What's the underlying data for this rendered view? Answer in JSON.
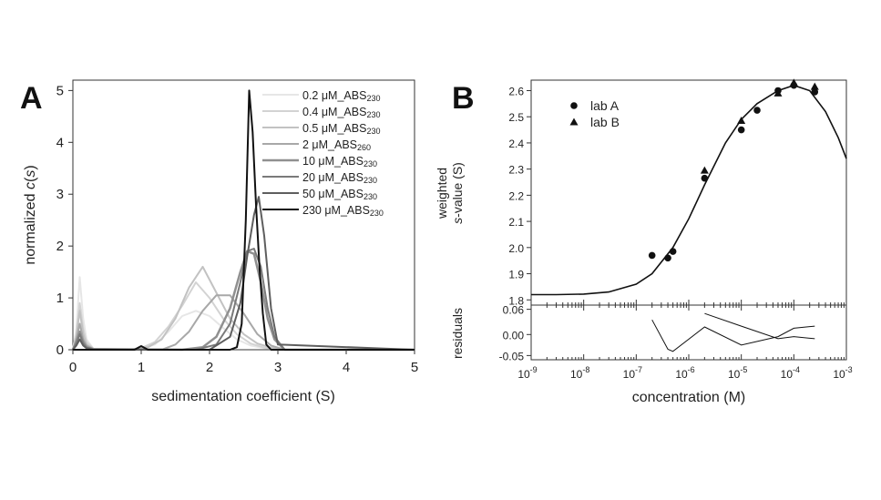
{
  "chart_data": [
    {
      "type": "line",
      "panel_label": "A",
      "xlabel": "sedimentation coefficient (S)",
      "ylabel_prefix": "normalized ",
      "ylabel_italic": "c",
      "ylabel_open": "(",
      "ylabel_var": "s",
      "ylabel_close": ")",
      "xlim": [
        0,
        5
      ],
      "ylim": [
        0,
        5.2
      ],
      "xticks": [
        0,
        1,
        2,
        3,
        4,
        5
      ],
      "yticks": [
        0,
        1,
        2,
        3,
        4,
        5
      ],
      "grid": false,
      "legend_position": "top-right",
      "series": [
        {
          "name": "0.2  μM_ABS",
          "sub": "230",
          "color": "#e6e6e6",
          "width": 2,
          "x": [
            0,
            0.05,
            0.1,
            0.15,
            0.2,
            0.3,
            0.5,
            0.8,
            1.0,
            1.2,
            1.4,
            1.6,
            1.8,
            2.0,
            2.2,
            2.4,
            2.6,
            2.8,
            3.0,
            3.2,
            5.0
          ],
          "y": [
            0,
            0.4,
            1.4,
            0.6,
            0.2,
            0.02,
            0,
            0,
            0.02,
            0.1,
            0.35,
            0.65,
            0.75,
            0.65,
            0.42,
            0.2,
            0.08,
            0.03,
            0.01,
            0,
            0
          ]
        },
        {
          "name": "0.4  μM_ABS",
          "sub": "230",
          "color": "#d3d3d3",
          "width": 2,
          "x": [
            0,
            0.05,
            0.1,
            0.15,
            0.2,
            0.3,
            0.8,
            1.0,
            1.2,
            1.4,
            1.6,
            1.8,
            2.0,
            2.2,
            2.4,
            2.6,
            2.8,
            3.0,
            5.0
          ],
          "y": [
            0,
            0.3,
            0.9,
            0.4,
            0.15,
            0.02,
            0,
            0.03,
            0.15,
            0.45,
            0.85,
            1.3,
            1.0,
            0.6,
            0.3,
            0.12,
            0.04,
            0,
            0
          ]
        },
        {
          "name": "0.5  μM_ABS",
          "sub": "230",
          "color": "#c2c2c2",
          "width": 2,
          "x": [
            0,
            0.05,
            0.1,
            0.15,
            0.2,
            0.3,
            0.9,
            1.1,
            1.3,
            1.5,
            1.7,
            1.9,
            2.1,
            2.3,
            2.5,
            2.7,
            2.9,
            3.1,
            5.0
          ],
          "y": [
            0,
            0.25,
            0.75,
            0.3,
            0.1,
            0.02,
            0,
            0.05,
            0.2,
            0.6,
            1.2,
            1.6,
            1.1,
            0.6,
            0.3,
            0.12,
            0.04,
            0,
            0
          ]
        },
        {
          "name": "  2   μM_ABS",
          "sub": "260",
          "color": "#a8a8a8",
          "width": 2,
          "x": [
            0,
            0.05,
            0.1,
            0.15,
            0.2,
            0.3,
            1.3,
            1.5,
            1.7,
            1.9,
            2.1,
            2.3,
            2.5,
            2.7,
            2.9,
            3.1,
            5.0
          ],
          "y": [
            0,
            0.2,
            0.5,
            0.2,
            0.08,
            0.01,
            0,
            0.1,
            0.35,
            0.75,
            1.05,
            1.05,
            0.7,
            0.3,
            0.08,
            0,
            0
          ]
        },
        {
          "name": "10   μM_ABS",
          "sub": "230",
          "color": "#909090",
          "width": 2.5,
          "x": [
            0,
            0.05,
            0.1,
            0.15,
            0.2,
            0.3,
            1.6,
            1.9,
            2.1,
            2.3,
            2.45,
            2.55,
            2.65,
            2.75,
            2.85,
            2.95,
            3.1,
            5.0
          ],
          "y": [
            0,
            0.15,
            0.35,
            0.15,
            0.05,
            0.01,
            0,
            0.05,
            0.25,
            0.8,
            1.5,
            1.9,
            1.85,
            1.3,
            0.6,
            0.2,
            0,
            0
          ]
        },
        {
          "name": "20   μM_ABS",
          "sub": "230",
          "color": "#7a7a7a",
          "width": 2,
          "x": [
            0,
            0.05,
            0.1,
            0.15,
            0.2,
            0.3,
            1.8,
            2.1,
            2.3,
            2.45,
            2.55,
            2.65,
            2.75,
            2.85,
            2.95,
            3.1,
            5.0
          ],
          "y": [
            0,
            0.12,
            0.3,
            0.12,
            0.04,
            0.01,
            0,
            0.1,
            0.5,
            1.3,
            1.9,
            1.95,
            1.6,
            0.8,
            0.25,
            0,
            0
          ]
        },
        {
          "name": "50   μM_ABS",
          "sub": "230",
          "color": "#5e5e5e",
          "width": 2,
          "x": [
            0,
            0.05,
            0.1,
            0.15,
            0.2,
            0.3,
            2.0,
            2.3,
            2.45,
            2.55,
            2.65,
            2.72,
            2.8,
            2.9,
            3.0,
            5.0
          ],
          "y": [
            0,
            0.08,
            0.2,
            0.08,
            0.03,
            0,
            0,
            0.25,
            0.9,
            1.8,
            2.6,
            2.95,
            2.2,
            0.8,
            0.1,
            0
          ]
        },
        {
          "name": "230  μM_ABS",
          "sub": "230",
          "color": "#111111",
          "width": 2,
          "x": [
            0,
            0.9,
            1.0,
            1.1,
            1.3,
            2.3,
            2.4,
            2.47,
            2.53,
            2.58,
            2.63,
            2.68,
            2.73,
            2.78,
            2.83,
            2.9,
            5.0
          ],
          "y": [
            0,
            0,
            0.07,
            0,
            0,
            0,
            0.05,
            0.5,
            2.5,
            5.0,
            4.2,
            2.8,
            1.6,
            0.7,
            0.1,
            0,
            0
          ]
        }
      ]
    },
    {
      "type": "scatter",
      "panel_label": "B",
      "xlabel": "concentration (M)",
      "ylabel_line1": "weighted",
      "ylabel_var": "s",
      "ylabel_rest": "-value (S)",
      "residual_label": "residuals",
      "xscale": "log",
      "xlim": [
        1e-09,
        0.001
      ],
      "xticks_exp": [
        "-9",
        "-8",
        "-7",
        "-6",
        "-5",
        "-4",
        "-3"
      ],
      "xtick_base": "10",
      "ylim": [
        1.78,
        2.64
      ],
      "yticks": [
        "1.8",
        "1.9",
        "2.0",
        "2.1",
        "2.2",
        "2.3",
        "2.4",
        "2.5",
        "2.6"
      ],
      "residual_ylim": [
        -0.06,
        0.07
      ],
      "residual_yticks": [
        "0.06",
        "0.00",
        "-0.05"
      ],
      "legend_position": "top-left",
      "series": [
        {
          "name": "lab A",
          "marker": "circle",
          "x": [
            2e-07,
            4e-07,
            5e-07,
            2e-06,
            1e-05,
            2e-05,
            5e-05,
            0.0001,
            0.00025
          ],
          "y": [
            1.97,
            1.96,
            1.985,
            2.265,
            2.45,
            2.525,
            2.6,
            2.62,
            2.595
          ]
        },
        {
          "name": "lab B",
          "marker": "triangle",
          "x": [
            2e-06,
            1e-05,
            5e-05,
            0.0001,
            0.00025
          ],
          "y": [
            2.295,
            2.485,
            2.59,
            2.63,
            2.615
          ]
        },
        {
          "name": "fit",
          "marker": "none",
          "x": [
            1e-09,
            3e-09,
            1e-08,
            3e-08,
            1e-07,
            2e-07,
            5e-07,
            1e-06,
            2e-06,
            5e-06,
            1e-05,
            2e-05,
            5e-05,
            0.0001,
            0.0002,
            0.0004,
            0.0007,
            0.001
          ],
          "y": [
            1.82,
            1.82,
            1.822,
            1.83,
            1.86,
            1.9,
            2.0,
            2.11,
            2.24,
            2.4,
            2.49,
            2.55,
            2.6,
            2.62,
            2.6,
            2.52,
            2.42,
            2.34
          ]
        }
      ],
      "residual_series": [
        {
          "name": "lab A residuals",
          "x": [
            2e-07,
            4e-07,
            5e-07,
            2e-06,
            1e-05,
            5e-05,
            0.0001,
            0.00025
          ],
          "y": [
            0.035,
            -0.035,
            -0.04,
            0.018,
            -0.025,
            -0.005,
            0.015,
            0.02
          ]
        },
        {
          "name": "lab B residuals",
          "x": [
            2e-06,
            1e-05,
            5e-05,
            0.0001,
            0.00025
          ],
          "y": [
            0.05,
            0.02,
            -0.01,
            -0.005,
            -0.01
          ]
        }
      ]
    }
  ]
}
